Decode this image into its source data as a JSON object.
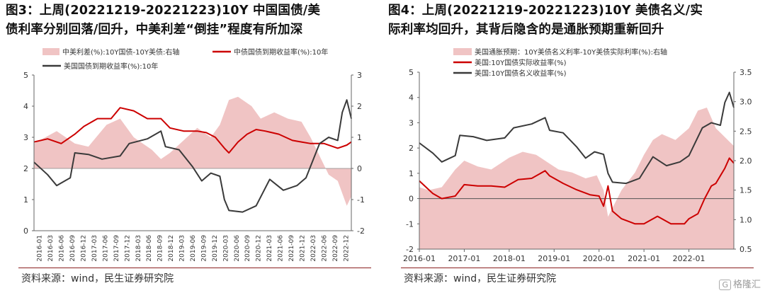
{
  "panels": [
    {
      "title_line1": "图3：上周(20221219-20221223)10Y 中国国债/美",
      "title_line2": "债利率分别回落/回升，中美利差“倒挂”程度有所加深",
      "source": "资料来源：wind，民生证券研究院"
    },
    {
      "title_line1": "图4：上周(20221219-20221223)10Y 美债名义/实",
      "title_line2": "际利率均回升，其背后隐含的是通胀预期重新回升",
      "source": "资料来源：wind，民生证券研究院"
    }
  ],
  "watermark": {
    "logo": "G",
    "text": "格隆汇"
  },
  "colors": {
    "area": "#f0c4c4",
    "red": "#cc0000",
    "dark": "#3a3a3a"
  },
  "chart_data": [
    {
      "type": "line",
      "x_tick_labels": [
        "2016-01",
        "2016-03",
        "2016-06",
        "2016-09",
        "2016-12",
        "2017-03",
        "2017-06",
        "2017-09",
        "2017-12",
        "2018-03",
        "2018-06",
        "2018-09",
        "2018-12",
        "2019-03",
        "2019-06",
        "2019-09",
        "2019-12",
        "2020-03",
        "2020-06",
        "2020-09",
        "2020-12",
        "2021-03",
        "2021-06",
        "2021-09",
        "2021-12",
        "2022-03",
        "2022-06",
        "2022-09",
        "2022-12"
      ],
      "y_left": {
        "ticks": [
          0,
          1,
          2,
          3,
          4,
          5
        ],
        "range": [
          0,
          5
        ]
      },
      "y_right": {
        "ticks": [
          -2,
          -1,
          0,
          1,
          2,
          3
        ],
        "range": [
          -2,
          3
        ]
      },
      "legend": [
        "中美利差(%):10Y国债-10Y美债:右轴",
        "中债国债到期收益率(%):10年",
        "美国国债到期收益率(%):10年"
      ],
      "series": [
        {
          "name": "中美利差(%):10Y国债-10Y美债:右轴",
          "kind": "area",
          "axis": "right",
          "x": [
            2016.0,
            2016.5,
            2016.9,
            2017.2,
            2017.6,
            2017.9,
            2018.2,
            2018.6,
            2018.8,
            2019.0,
            2019.3,
            2019.6,
            2019.9,
            2020.1,
            2020.3,
            2020.5,
            2020.8,
            2021.0,
            2021.3,
            2021.6,
            2021.9,
            2022.1,
            2022.3,
            2022.5,
            2022.7,
            2022.9,
            2023.0
          ],
          "values": [
            0.8,
            1.2,
            0.8,
            0.7,
            1.4,
            1.6,
            1.0,
            0.6,
            0.3,
            0.5,
            0.9,
            1.3,
            1.0,
            1.4,
            2.2,
            2.3,
            2.0,
            1.6,
            1.8,
            1.6,
            1.5,
            1.0,
            0.4,
            -0.2,
            -0.4,
            -1.2,
            -0.9
          ]
        },
        {
          "name": "中债国债到期收益率(%):10年",
          "kind": "line",
          "axis": "left",
          "x": [
            2016.0,
            2016.3,
            2016.6,
            2016.9,
            2017.1,
            2017.4,
            2017.7,
            2017.9,
            2018.2,
            2018.5,
            2018.8,
            2019.0,
            2019.3,
            2019.6,
            2019.8,
            2020.0,
            2020.2,
            2020.3,
            2020.5,
            2020.7,
            2020.9,
            2021.1,
            2021.4,
            2021.7,
            2021.9,
            2022.1,
            2022.4,
            2022.7,
            2022.9,
            2023.0
          ],
          "values": [
            2.85,
            2.95,
            2.8,
            3.1,
            3.35,
            3.6,
            3.6,
            3.95,
            3.85,
            3.6,
            3.6,
            3.3,
            3.2,
            3.2,
            3.15,
            3.0,
            2.65,
            2.5,
            2.85,
            3.1,
            3.25,
            3.2,
            3.1,
            2.9,
            2.85,
            2.8,
            2.8,
            2.65,
            2.75,
            2.85
          ]
        },
        {
          "name": "美国国债到期收益率(%):10年",
          "kind": "line",
          "axis": "left",
          "x": [
            2016.0,
            2016.3,
            2016.5,
            2016.8,
            2016.9,
            2017.2,
            2017.5,
            2017.9,
            2018.1,
            2018.5,
            2018.8,
            2018.9,
            2019.2,
            2019.5,
            2019.7,
            2019.9,
            2020.1,
            2020.2,
            2020.3,
            2020.6,
            2020.9,
            2021.2,
            2021.5,
            2021.8,
            2022.0,
            2022.3,
            2022.5,
            2022.7,
            2022.8,
            2022.9,
            2023.0
          ],
          "values": [
            2.2,
            1.8,
            1.45,
            1.7,
            2.5,
            2.45,
            2.3,
            2.4,
            2.8,
            2.95,
            3.2,
            2.7,
            2.6,
            2.05,
            1.6,
            1.85,
            1.75,
            1.0,
            0.65,
            0.6,
            0.8,
            1.65,
            1.3,
            1.45,
            1.7,
            2.8,
            3.0,
            2.9,
            3.8,
            4.2,
            3.6
          ]
        }
      ]
    },
    {
      "type": "line",
      "x_tick_labels": [
        "2016-01",
        "2017-01",
        "2018-01",
        "2019-01",
        "2020-01",
        "2021-01",
        "2022-01"
      ],
      "y_left": {
        "ticks": [
          -2,
          -1,
          0,
          1,
          2,
          3,
          4,
          5
        ],
        "range": [
          -2,
          5
        ]
      },
      "y_right": {
        "ticks": [
          0.5,
          1.0,
          1.5,
          2.0,
          2.5,
          3.0,
          3.5
        ],
        "range": [
          0.5,
          3.5
        ]
      },
      "legend": [
        "美国通胀预期：10Y美债名义利率-10Y美债实际利率(%):右轴",
        "美国:10Y国债实际收益率(%)",
        "美国:10Y国债名义收益率(%)"
      ],
      "series": [
        {
          "name": "美国通胀预期：10Y美债名义利率-10Y美债实际利率(%):右轴",
          "kind": "area",
          "axis": "right",
          "x": [
            2016.0,
            2016.2,
            2016.5,
            2016.8,
            2017.0,
            2017.3,
            2017.6,
            2018.0,
            2018.3,
            2018.6,
            2018.9,
            2019.1,
            2019.4,
            2019.7,
            2019.95,
            2020.1,
            2020.2,
            2020.3,
            2020.5,
            2020.8,
            2021.0,
            2021.2,
            2021.4,
            2021.7,
            2022.0,
            2022.2,
            2022.4,
            2022.6,
            2022.8,
            2023.0
          ],
          "values": [
            1.55,
            1.5,
            1.55,
            1.85,
            2.0,
            1.9,
            1.85,
            2.05,
            2.15,
            2.1,
            1.95,
            1.85,
            1.8,
            1.7,
            1.75,
            1.5,
            1.05,
            1.2,
            1.5,
            1.8,
            2.1,
            2.35,
            2.45,
            2.35,
            2.55,
            2.85,
            2.9,
            2.55,
            2.4,
            2.25
          ]
        },
        {
          "name": "美国:10Y国债实际收益率(%)",
          "kind": "line",
          "axis": "left",
          "x": [
            2016.0,
            2016.3,
            2016.5,
            2016.8,
            2017.0,
            2017.3,
            2017.6,
            2017.9,
            2018.2,
            2018.5,
            2018.8,
            2018.9,
            2019.2,
            2019.5,
            2019.8,
            2020.0,
            2020.1,
            2020.2,
            2020.3,
            2020.5,
            2020.8,
            2021.0,
            2021.3,
            2021.6,
            2021.9,
            2022.0,
            2022.2,
            2022.35,
            2022.5,
            2022.6,
            2022.8,
            2022.9,
            2023.0
          ],
          "values": [
            0.7,
            0.2,
            0.0,
            0.1,
            0.55,
            0.5,
            0.5,
            0.45,
            0.75,
            0.8,
            1.1,
            0.9,
            0.6,
            0.35,
            0.15,
            0.1,
            -0.3,
            0.5,
            -0.5,
            -0.8,
            -1.0,
            -1.0,
            -0.7,
            -1.0,
            -1.0,
            -0.8,
            -0.6,
            0.0,
            0.5,
            0.6,
            1.2,
            1.6,
            1.4
          ]
        },
        {
          "name": "美国:10Y国债名义收益率(%)",
          "kind": "line",
          "axis": "left",
          "x": [
            2016.0,
            2016.3,
            2016.5,
            2016.8,
            2016.9,
            2017.2,
            2017.5,
            2017.9,
            2018.1,
            2018.5,
            2018.8,
            2018.9,
            2019.2,
            2019.5,
            2019.7,
            2019.9,
            2020.1,
            2020.2,
            2020.3,
            2020.6,
            2020.9,
            2021.2,
            2021.5,
            2021.8,
            2022.0,
            2022.3,
            2022.5,
            2022.7,
            2022.8,
            2022.9,
            2023.0
          ],
          "values": [
            2.2,
            1.8,
            1.45,
            1.7,
            2.5,
            2.45,
            2.3,
            2.4,
            2.8,
            2.95,
            3.2,
            2.7,
            2.6,
            2.05,
            1.6,
            1.85,
            1.75,
            1.0,
            0.65,
            0.6,
            0.8,
            1.65,
            1.3,
            1.45,
            1.7,
            2.8,
            3.0,
            2.9,
            3.8,
            4.2,
            3.6
          ]
        }
      ]
    }
  ]
}
